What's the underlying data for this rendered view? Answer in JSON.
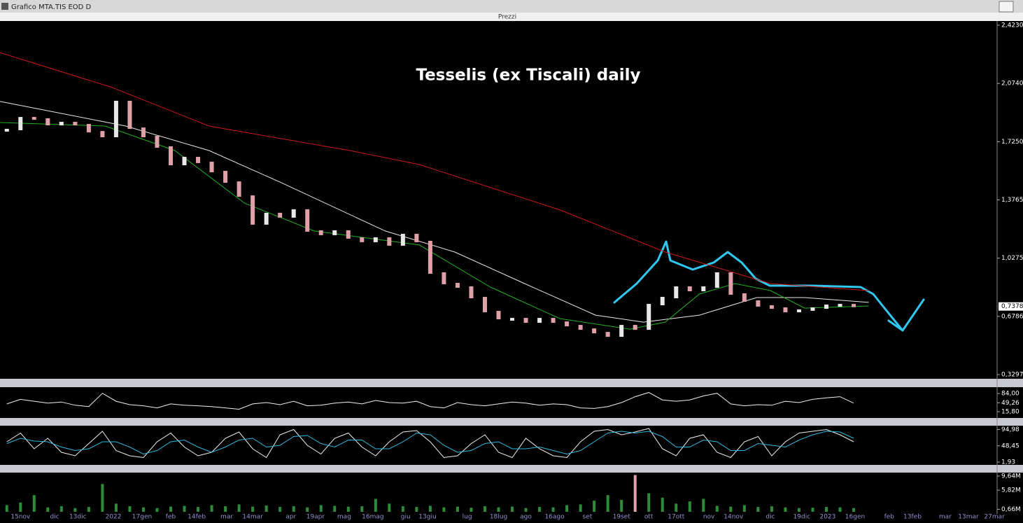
{
  "window_title": "Grafico MTA.TIS EOD D",
  "chart_data": [
    {
      "type": "candlestick",
      "panel_title": "Prezzi",
      "title": "Tesselis (ex Tiscali) daily",
      "x": [
        -1,
        0,
        1,
        2,
        3,
        4,
        5,
        6,
        7,
        8,
        9,
        10,
        11,
        12,
        13,
        14,
        15,
        16,
        17,
        18,
        19,
        20,
        21,
        22,
        23,
        24,
        25,
        26,
        27,
        28,
        29,
        30,
        31,
        32,
        33,
        34,
        35,
        36,
        37,
        38,
        39,
        40,
        41,
        42,
        43,
        44,
        45,
        46,
        47,
        48,
        49,
        50,
        51,
        52,
        53,
        54,
        55,
        56,
        57,
        58,
        59,
        60,
        61
      ],
      "xlim": [
        -1.5,
        71.5
      ],
      "xticks": [
        {
          "value": 0,
          "label": "15nov"
        },
        {
          "value": 2.5,
          "label": "dic"
        },
        {
          "value": 4.2,
          "label": "13dic"
        },
        {
          "value": 6.8,
          "label": "2022"
        },
        {
          "value": 8.9,
          "label": "17gen"
        },
        {
          "value": 11,
          "label": "feb"
        },
        {
          "value": 12.9,
          "label": "14feb"
        },
        {
          "value": 15.1,
          "label": "mar"
        },
        {
          "value": 17,
          "label": "14mar"
        },
        {
          "value": 19.8,
          "label": "apr"
        },
        {
          "value": 21.6,
          "label": "19apr"
        },
        {
          "value": 23.7,
          "label": "mag"
        },
        {
          "value": 25.8,
          "label": "16mag"
        },
        {
          "value": 28.2,
          "label": "giu"
        },
        {
          "value": 29.8,
          "label": "13giu"
        },
        {
          "value": 32.7,
          "label": "lug"
        },
        {
          "value": 35,
          "label": "18lug"
        },
        {
          "value": 37,
          "label": "ago"
        },
        {
          "value": 39.1,
          "label": "16ago"
        },
        {
          "value": 41.5,
          "label": "set"
        },
        {
          "value": 44,
          "label": "19set"
        },
        {
          "value": 46,
          "label": "ott"
        },
        {
          "value": 48,
          "label": "17ott"
        },
        {
          "value": 50.4,
          "label": "nov"
        },
        {
          "value": 52.2,
          "label": "14nov"
        },
        {
          "value": 54.9,
          "label": "dic"
        },
        {
          "value": 57.2,
          "label": "19dic"
        },
        {
          "value": 59.1,
          "label": "2023"
        },
        {
          "value": 61.1,
          "label": "16gen"
        },
        {
          "value": 63.6,
          "label": "feb"
        },
        {
          "value": 65.3,
          "label": "13feb"
        },
        {
          "value": 67.7,
          "label": "mar"
        },
        {
          "value": 69.4,
          "label": "13mar"
        },
        {
          "value": 71.3,
          "label": "27mar"
        }
      ],
      "ylim": [
        0.3297,
        2.423
      ],
      "yticks": [
        {
          "value": 2.423,
          "label": "2,4230"
        },
        {
          "value": 2.074,
          "label": "2,0740"
        },
        {
          "value": 1.725,
          "label": "1,7250"
        },
        {
          "value": 1.3765,
          "label": "1,3765"
        },
        {
          "value": 1.0275,
          "label": "1,0275"
        },
        {
          "value": 0.6786,
          "label": "0,6786"
        },
        {
          "value": 0.3297,
          "label": "0,3297"
        }
      ],
      "last": {
        "value": 0.7378,
        "label": "0,7378"
      },
      "close": {
        "color_up": "#e8e8e8",
        "color_down": "#e0a0a8",
        "values": [
          1.798,
          1.869,
          1.861,
          1.827,
          1.84,
          1.827,
          1.785,
          1.756,
          1.966,
          1.806,
          1.756,
          1.693,
          1.588,
          1.63,
          1.601,
          1.546,
          1.483,
          1.399,
          1.232,
          1.295,
          1.274,
          1.316,
          1.19,
          1.169,
          1.19,
          1.148,
          1.127,
          1.148,
          1.106,
          1.169,
          1.127,
          0.938,
          0.875,
          0.854,
          0.791,
          0.707,
          0.665,
          0.665,
          0.644,
          0.665,
          0.644,
          0.623,
          0.602,
          0.581,
          0.56,
          0.623,
          0.602,
          0.749,
          0.791,
          0.854,
          0.833,
          0.854,
          0.938,
          0.812,
          0.77,
          0.741,
          0.728,
          0.707,
          0.716,
          0.728,
          0.745,
          0.749,
          0.738
        ]
      },
      "series": [
        {
          "color": "#d01818",
          "x": [
            -1.5,
            6.7,
            13.8,
            24.1,
            29.2,
            39.5,
            47.2,
            54.9,
            62.1
          ],
          "values": [
            2.259,
            2.05,
            1.819,
            1.672,
            1.588,
            1.316,
            1.064,
            0.875,
            0.833
          ]
        },
        {
          "color": "#e8e8e8",
          "x": [
            -1.5,
            7.7,
            13.8,
            19,
            26.7,
            31.8,
            36.9,
            42.1,
            45.6,
            49.7,
            53.9,
            57.4,
            62.1
          ],
          "values": [
            1.966,
            1.819,
            1.672,
            1.483,
            1.19,
            1.064,
            0.875,
            0.686,
            0.644,
            0.686,
            0.791,
            0.791,
            0.762
          ]
        },
        {
          "color": "#20b020",
          "x": [
            -1.5,
            6.2,
            11.3,
            16.4,
            21.5,
            29.2,
            34.4,
            39.5,
            44.6,
            47.2,
            49.7,
            52.3,
            54.9,
            57.4,
            62.1
          ],
          "values": [
            1.84,
            1.819,
            1.672,
            1.357,
            1.19,
            1.106,
            0.854,
            0.665,
            0.602,
            0.644,
            0.812,
            0.875,
            0.833,
            0.728,
            0.741
          ]
        }
      ]
    },
    {
      "type": "line",
      "ylim": [
        0,
        100
      ],
      "yticks": [
        {
          "value": 84,
          "label": "84,00"
        },
        {
          "value": 49.26,
          "label": "49,26"
        },
        {
          "value": 15.8,
          "label": "15,80"
        }
      ],
      "series": [
        {
          "color": "#f0f0f0",
          "values": [
            45,
            62,
            55,
            48,
            52,
            40,
            35,
            85,
            55,
            42,
            38,
            30,
            45,
            40,
            38,
            35,
            30,
            25,
            45,
            50,
            42,
            55,
            38,
            40,
            48,
            52,
            45,
            58,
            50,
            48,
            55,
            35,
            30,
            50,
            42,
            38,
            45,
            52,
            48,
            40,
            45,
            42,
            30,
            28,
            35,
            50,
            72,
            88,
            60,
            55,
            60,
            75,
            85,
            45,
            38,
            42,
            40,
            55,
            50,
            62,
            68,
            72,
            48
          ]
        }
      ]
    },
    {
      "type": "line",
      "ylim": [
        0,
        100
      ],
      "yticks": [
        {
          "value": 94.98,
          "label": "94,98"
        },
        {
          "value": 48.45,
          "label": "48,45"
        },
        {
          "value": 1.93,
          "label": "1,93"
        }
      ],
      "series": [
        {
          "color": "#f0f0f0",
          "values": [
            60,
            85,
            40,
            70,
            30,
            20,
            55,
            90,
            35,
            20,
            15,
            60,
            85,
            45,
            20,
            30,
            70,
            88,
            40,
            15,
            80,
            95,
            50,
            25,
            70,
            85,
            45,
            20,
            60,
            88,
            92,
            60,
            15,
            20,
            55,
            80,
            30,
            15,
            70,
            40,
            20,
            15,
            60,
            90,
            95,
            80,
            88,
            98,
            40,
            20,
            70,
            80,
            30,
            15,
            60,
            75,
            20,
            60,
            85,
            90,
            95,
            80,
            60
          ]
        },
        {
          "color": "#30b8e0",
          "values": [
            55,
            70,
            62,
            60,
            45,
            35,
            40,
            60,
            60,
            45,
            25,
            35,
            60,
            65,
            45,
            30,
            45,
            65,
            70,
            45,
            50,
            75,
            78,
            55,
            45,
            65,
            65,
            40,
            40,
            60,
            85,
            80,
            50,
            30,
            35,
            55,
            60,
            40,
            40,
            45,
            35,
            25,
            35,
            60,
            85,
            90,
            85,
            90,
            75,
            45,
            45,
            65,
            60,
            35,
            35,
            55,
            50,
            45,
            65,
            80,
            90,
            88,
            70
          ]
        }
      ]
    },
    {
      "type": "bar",
      "ylim": [
        0,
        10
      ],
      "yticks": [
        {
          "value": 9.64,
          "label": "9,64M"
        },
        {
          "value": 5.82,
          "label": "5,82M"
        },
        {
          "value": 0.66,
          "label": "0,66M"
        }
      ],
      "color": "#2e8b3a",
      "highlight_color": "#e8a0a8",
      "values": [
        1.8,
        2.5,
        4.5,
        1.2,
        1.5,
        1,
        1.3,
        7.5,
        2.2,
        1.5,
        1.2,
        1,
        1.4,
        1.6,
        1.3,
        1.8,
        1.5,
        2,
        1.4,
        1.7,
        1.3,
        1.5,
        1.2,
        1.8,
        1.6,
        1.4,
        1.5,
        3.5,
        2.2,
        1.5,
        1.3,
        1.6,
        1.2,
        1.4,
        1.1,
        1.5,
        1.2,
        1.4,
        1,
        1.3,
        1.2,
        1.8,
        2,
        3,
        4.5,
        3.2,
        9.9,
        5,
        3.8,
        2.2,
        2.8,
        3.5,
        1.6,
        1.4,
        1.8,
        1.3,
        1.5,
        1.2,
        1,
        1.1,
        1.3,
        1.2,
        1
      ]
    }
  ]
}
